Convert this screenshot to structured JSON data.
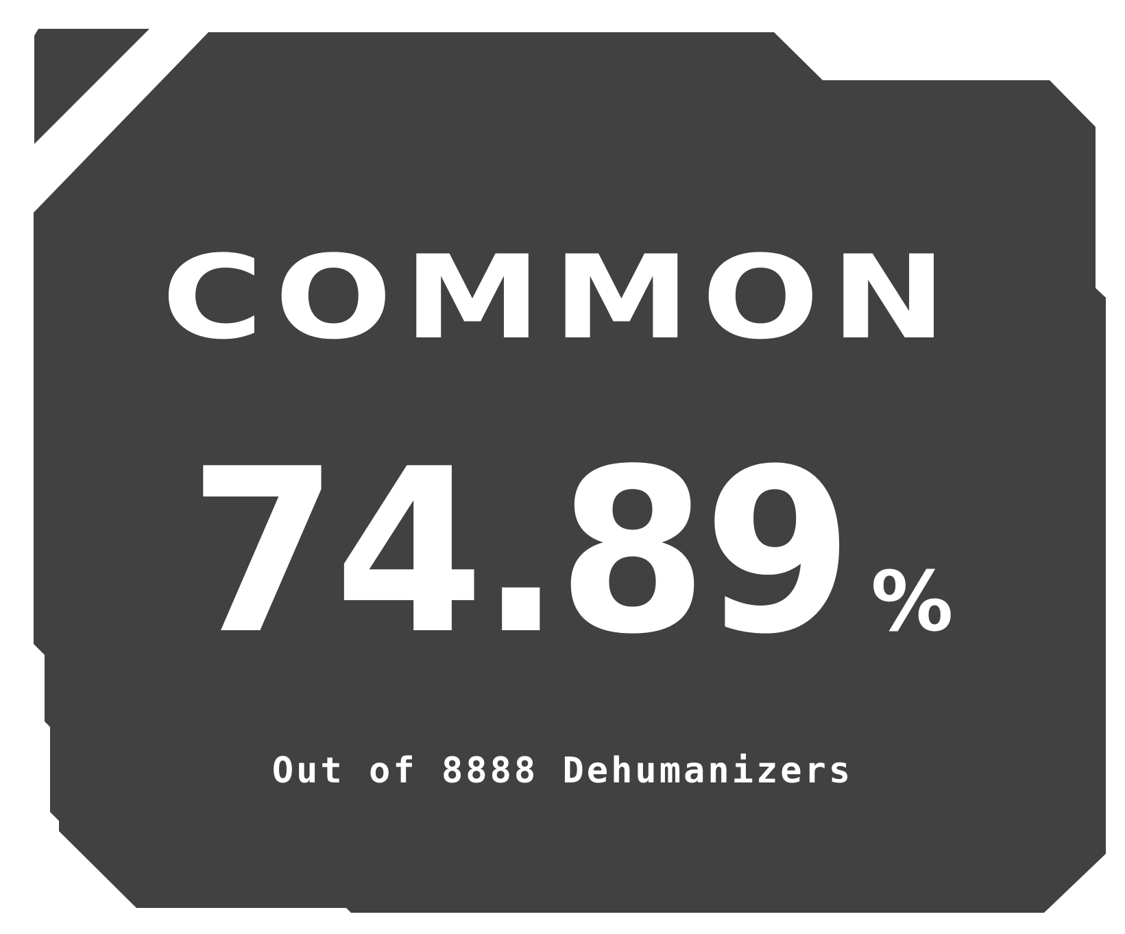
{
  "colors": {
    "background": "#ffffff",
    "panel": "#414141",
    "text": "#ffffff"
  },
  "rarity": {
    "label": "COMMON"
  },
  "stat": {
    "value": "74.89",
    "unit": "%"
  },
  "caption": {
    "text": "Out of 8888 Dehumanizers"
  }
}
